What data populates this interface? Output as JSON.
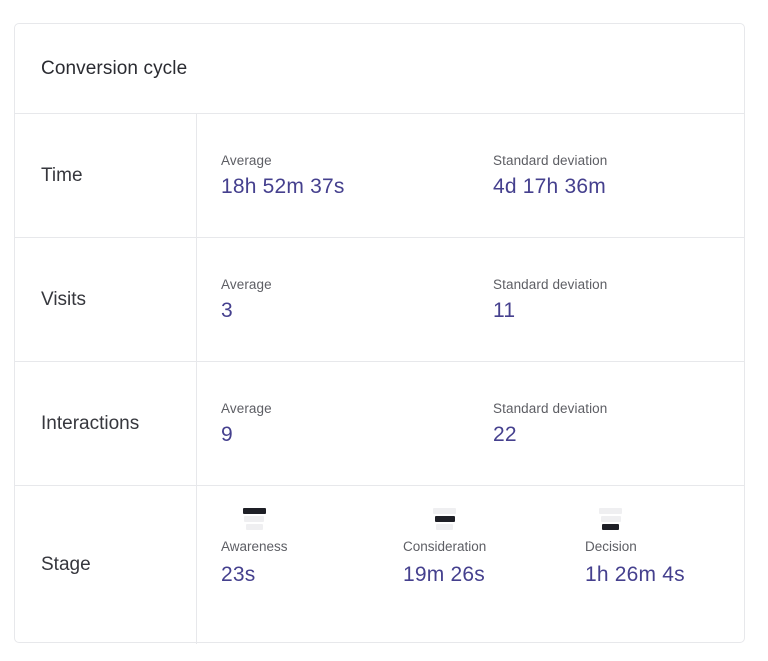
{
  "card": {
    "title": "Conversion cycle",
    "colors": {
      "value_text": "#45408e",
      "secondary_label_text": "#5d5e64",
      "row_label_text": "#36373d",
      "border": "#e7e8eb",
      "funnel_highlight": "#1e1f26",
      "funnel_muted": "#efeff1"
    },
    "metric_rows": [
      {
        "label": "Time",
        "metrics": [
          {
            "name": "Average",
            "value": "18h 52m 37s"
          },
          {
            "name": "Standard deviation",
            "value": "4d 17h 36m"
          }
        ]
      },
      {
        "label": "Visits",
        "metrics": [
          {
            "name": "Average",
            "value": "3"
          },
          {
            "name": "Standard deviation",
            "value": "11"
          }
        ]
      },
      {
        "label": "Interactions",
        "metrics": [
          {
            "name": "Average",
            "value": "9"
          },
          {
            "name": "Standard deviation",
            "value": "22"
          }
        ]
      }
    ],
    "stage_row": {
      "label": "Stage",
      "stages": [
        {
          "name": "Awareness",
          "value": "23s",
          "icon": "funnel-top-segment-icon",
          "highlight_index": 0
        },
        {
          "name": "Consideration",
          "value": "19m 26s",
          "icon": "funnel-middle-segment-icon",
          "highlight_index": 1
        },
        {
          "name": "Decision",
          "value": "1h 26m 4s",
          "icon": "funnel-bottom-segment-icon",
          "highlight_index": 2
        }
      ]
    }
  }
}
